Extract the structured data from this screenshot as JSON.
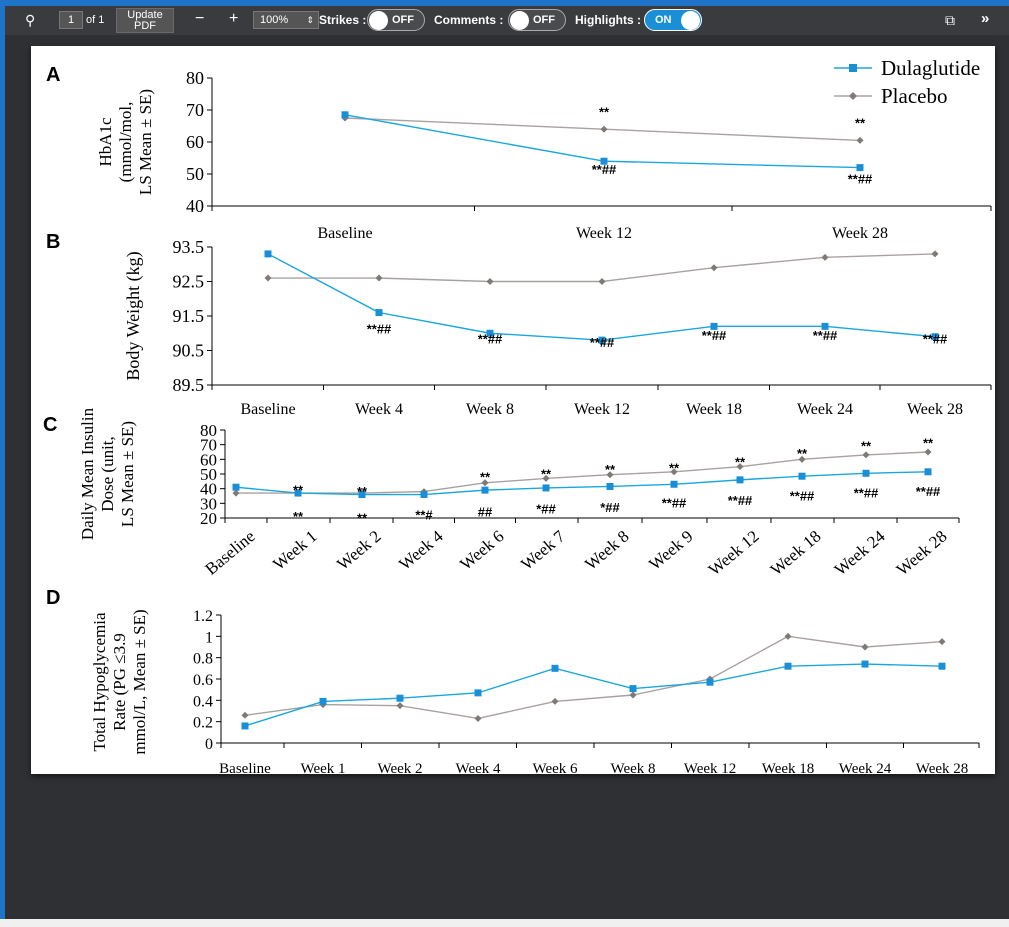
{
  "toolbar": {
    "page_number": "1",
    "page_of": "of 1",
    "update_line1": "Update",
    "update_line2": "PDF",
    "zoom_out": "−",
    "zoom_in": "+",
    "zoom_value": "100%",
    "strikes_label": "Strikes :",
    "strikes_state": "OFF",
    "comments_label": "Comments :",
    "comments_state": "OFF",
    "highlights_label": "Highlights :",
    "highlights_state": "ON",
    "search_icon": "search-icon",
    "external_icon": "external-link-icon",
    "expand_icon": "double-chevron-right-icon"
  },
  "colors": {
    "dulaglutide": "#1aa7dc",
    "placebo": "#a7a2a0",
    "marker_placebo": "#7f7a76",
    "marker_dula": "#1a8fd6"
  },
  "legend": {
    "dulaglutide": "Dulaglutide",
    "placebo": "Placebo"
  },
  "chart_data": [
    {
      "panel": "A",
      "type": "line",
      "ylabel_lines": [
        "HbA1c",
        "(mmol/mol,",
        "LS Mean ± SE)"
      ],
      "ylim": [
        40,
        80
      ],
      "yticks": [
        "40",
        "50",
        "60",
        "70",
        "80"
      ],
      "categories": [
        "Baseline",
        "Week 12",
        "Week 28"
      ],
      "series": [
        {
          "name": "Dulaglutide",
          "values": [
            68.5,
            54,
            52
          ]
        },
        {
          "name": "Placebo",
          "values": [
            67.5,
            64,
            60.5
          ]
        }
      ],
      "annotations": [
        {
          "category": "Week 12",
          "y": 68,
          "text": "**"
        },
        {
          "category": "Week 12",
          "y": 50,
          "text": "**##"
        },
        {
          "category": "Week 28",
          "y": 64.5,
          "text": "**"
        },
        {
          "category": "Week 28",
          "y": 47,
          "text": "**##"
        }
      ]
    },
    {
      "panel": "B",
      "type": "line",
      "ylabel": "Body Weight (kg)",
      "ylim": [
        89.5,
        93.5
      ],
      "yticks": [
        "89.5",
        "90.5",
        "91.5",
        "92.5",
        "93.5"
      ],
      "categories": [
        "Baseline",
        "Week 4",
        "Week 8",
        "Week 12",
        "Week 18",
        "Week 24",
        "Week 28"
      ],
      "series": [
        {
          "name": "Dulaglutide",
          "values": [
            93.3,
            91.6,
            91.0,
            90.8,
            91.2,
            91.2,
            90.9
          ]
        },
        {
          "name": "Placebo",
          "values": [
            92.6,
            92.6,
            92.5,
            92.5,
            92.9,
            93.2,
            93.3
          ]
        }
      ],
      "annotations": [
        {
          "category": "Week 4",
          "y": 91.0,
          "text": "**##"
        },
        {
          "category": "Week 8",
          "y": 90.7,
          "text": "**##"
        },
        {
          "category": "Week 12",
          "y": 90.6,
          "text": "**##"
        },
        {
          "category": "Week 18",
          "y": 90.8,
          "text": "**##"
        },
        {
          "category": "Week 24",
          "y": 90.8,
          "text": "**##"
        },
        {
          "category": "Week 28",
          "y": 90.7,
          "text": "**##"
        }
      ]
    },
    {
      "panel": "C",
      "type": "line",
      "ylabel_lines": [
        "Daily Mean Insulin",
        "Dose (unit,",
        "LS Mean ± SE)"
      ],
      "ylim": [
        20,
        80
      ],
      "yticks": [
        "20",
        "30",
        "40",
        "50",
        "60",
        "70",
        "80"
      ],
      "categories": [
        "Baseline",
        "Week 1",
        "Week 2",
        "Week 4",
        "Week 6",
        "Week 7",
        "Week 8",
        "Week 9",
        "Week 12",
        "Week 18",
        "Week 24",
        "Week 28"
      ],
      "series": [
        {
          "name": "Dulaglutide",
          "values": [
            41,
            37,
            36,
            36,
            39,
            40.5,
            41.5,
            43,
            46,
            48.5,
            50.5,
            51.5
          ]
        },
        {
          "name": "Placebo",
          "values": [
            37,
            37,
            37,
            38,
            44,
            47,
            49.5,
            51.5,
            55,
            60,
            63,
            65
          ]
        }
      ],
      "annotations": [
        {
          "index": 1,
          "y": 36,
          "text": "**"
        },
        {
          "index": 1,
          "y": 18,
          "text": "**"
        },
        {
          "index": 2,
          "y": 35,
          "text": "**"
        },
        {
          "index": 2,
          "y": 17,
          "text": "**"
        },
        {
          "index": 3,
          "y": 19,
          "text": "**#"
        },
        {
          "index": 4,
          "y": 45,
          "text": "**"
        },
        {
          "index": 4,
          "y": 21,
          "text": "##"
        },
        {
          "index": 5,
          "y": 47,
          "text": "**"
        },
        {
          "index": 5,
          "y": 23,
          "text": "*##"
        },
        {
          "index": 6,
          "y": 50,
          "text": "**"
        },
        {
          "index": 6,
          "y": 24,
          "text": "*##"
        },
        {
          "index": 7,
          "y": 51,
          "text": "**"
        },
        {
          "index": 7,
          "y": 27,
          "text": "**##"
        },
        {
          "index": 8,
          "y": 55,
          "text": "**"
        },
        {
          "index": 8,
          "y": 29,
          "text": "**##"
        },
        {
          "index": 9,
          "y": 61,
          "text": "**"
        },
        {
          "index": 9,
          "y": 32,
          "text": "**##"
        },
        {
          "index": 10,
          "y": 66,
          "text": "**"
        },
        {
          "index": 10,
          "y": 34,
          "text": "**##"
        },
        {
          "index": 11,
          "y": 68,
          "text": "**"
        },
        {
          "index": 11,
          "y": 35,
          "text": "**##"
        }
      ]
    },
    {
      "panel": "D",
      "type": "line",
      "ylabel_lines": [
        "Total Hypoglycemia",
        "Rate (PG ≤3.9",
        "mmol/L, Mean ± SE)"
      ],
      "ylim": [
        0,
        1.2
      ],
      "yticks": [
        "0",
        "0.2",
        "0.4",
        "0.6",
        "0.8",
        "1",
        "1.2"
      ],
      "categories": [
        "Baseline",
        "Week 1",
        "Week 2",
        "Week 4",
        "Week 6",
        "Week 8",
        "Week 12",
        "Week 18",
        "Week 24",
        "Week 28"
      ],
      "series": [
        {
          "name": "Dulaglutide",
          "values": [
            0.16,
            0.39,
            0.42,
            0.47,
            0.7,
            0.51,
            0.57,
            0.72,
            0.74,
            0.72
          ]
        },
        {
          "name": "Placebo",
          "values": [
            0.26,
            0.36,
            0.35,
            0.23,
            0.39,
            0.45,
            0.6,
            1.0,
            0.9,
            0.95
          ]
        }
      ]
    }
  ]
}
